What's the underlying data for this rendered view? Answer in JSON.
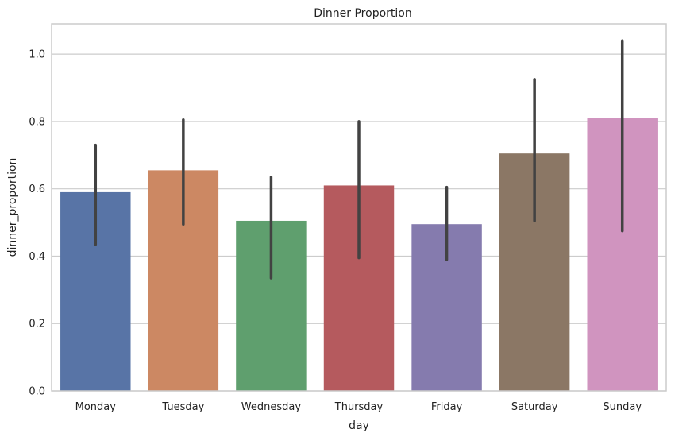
{
  "chart_data": {
    "type": "bar",
    "title": "Dinner Proportion",
    "xlabel": "day",
    "ylabel": "dinner_proportion",
    "categories": [
      "Monday",
      "Tuesday",
      "Wednesday",
      "Thursday",
      "Friday",
      "Saturday",
      "Sunday"
    ],
    "values": [
      0.59,
      0.655,
      0.505,
      0.61,
      0.495,
      0.705,
      0.81
    ],
    "ci_low": [
      0.435,
      0.495,
      0.335,
      0.395,
      0.39,
      0.505,
      0.475
    ],
    "ci_high": [
      0.73,
      0.805,
      0.635,
      0.8,
      0.605,
      0.925,
      1.04
    ],
    "colors": [
      "#5874a6",
      "#cc8863",
      "#5f9f6e",
      "#b55a5e",
      "#857bae",
      "#8b7765",
      "#d094bf"
    ],
    "ylim": [
      0,
      1.09
    ],
    "yticks": [
      0.0,
      0.2,
      0.4,
      0.6,
      0.8,
      1.0
    ],
    "ytick_labels": [
      "0.0",
      "0.2",
      "0.4",
      "0.6",
      "0.8",
      "1.0"
    ],
    "grid": "horizontal"
  }
}
